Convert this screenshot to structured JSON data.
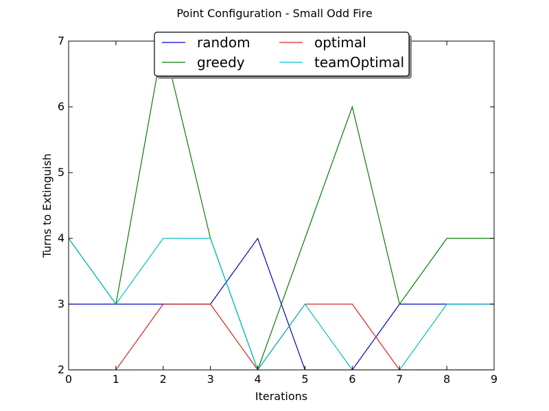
{
  "chart_data": {
    "type": "line",
    "title": "Point Configuration - Small Odd Fire",
    "xlabel": "Iterations",
    "ylabel": "Turns to Extinguish",
    "xlim": [
      0,
      9
    ],
    "ylim": [
      2,
      7
    ],
    "x": [
      0,
      1,
      2,
      3,
      4,
      5,
      6,
      7,
      8,
      9
    ],
    "xticks": [
      "0",
      "1",
      "2",
      "3",
      "4",
      "5",
      "6",
      "7",
      "8",
      "9"
    ],
    "yticks": [
      "2",
      "3",
      "4",
      "5",
      "6",
      "7"
    ],
    "grid": false,
    "legend_position": "top-center",
    "series": [
      {
        "name": "random",
        "color": "#0000bf",
        "values": [
          3,
          3,
          3,
          3,
          4,
          2,
          2,
          3,
          3,
          3
        ]
      },
      {
        "name": "greedy",
        "color": "#007f00",
        "values": [
          4,
          3,
          7,
          4,
          2,
          4,
          6,
          3,
          4,
          4
        ]
      },
      {
        "name": "optimal",
        "color": "#d62020",
        "values": [
          2,
          2,
          3,
          3,
          2,
          3,
          3,
          2,
          2,
          2
        ]
      },
      {
        "name": "teamOptimal",
        "color": "#00bfbf",
        "values": [
          4,
          3,
          4,
          4,
          2,
          3,
          2,
          2,
          3,
          3
        ]
      }
    ]
  }
}
